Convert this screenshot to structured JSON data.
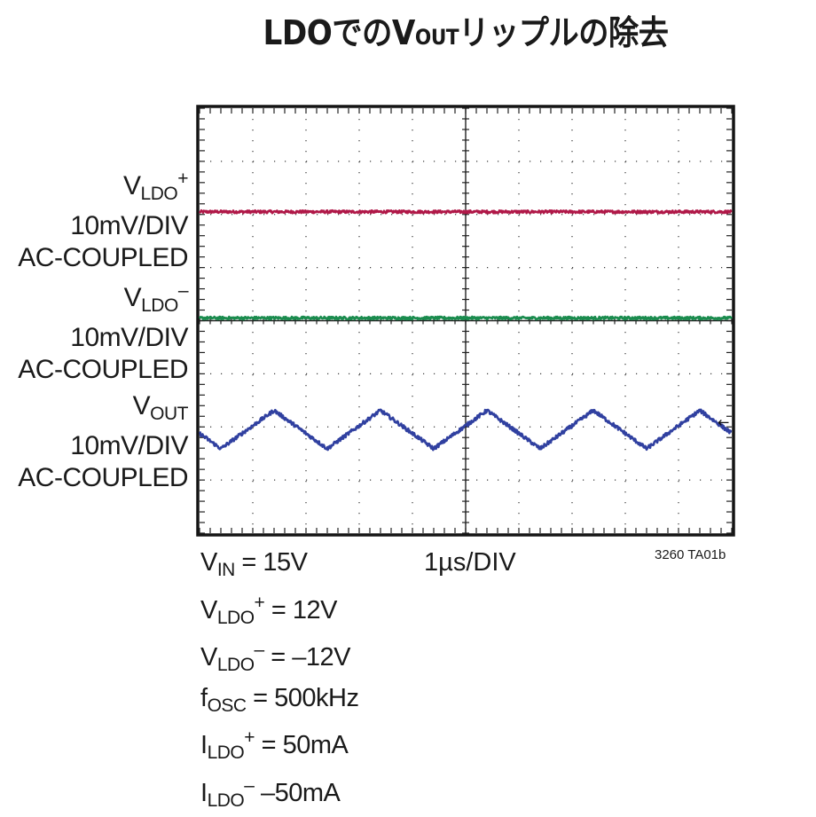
{
  "title": {
    "prefix": "LDOでの",
    "v": "V",
    "v_sub": "OUT",
    "suffix": "リップルの除去"
  },
  "channels": [
    {
      "sym": "V",
      "sub": "LDO",
      "sup": "+",
      "scale": "10mV/DIV",
      "coupling": "AC-COUPLED",
      "color": "#b01848"
    },
    {
      "sym": "V",
      "sub": "LDO",
      "sup": "–",
      "scale": "10mV/DIV",
      "coupling": "AC-COUPLED",
      "color": "#1a8c4e"
    },
    {
      "sym": "V",
      "sub": "OUT",
      "sup": "",
      "scale": "10mV/DIV",
      "coupling": "AC-COUPLED",
      "color": "#3040a0"
    }
  ],
  "conditions": [
    {
      "sym": "V",
      "sub": "IN",
      "sup": "",
      "rest": " = 15V"
    },
    {
      "sym": "V",
      "sub": "LDO",
      "sup": "+",
      "rest": " = 12V"
    },
    {
      "sym": "V",
      "sub": "LDO",
      "sup": "–",
      "rest": " = –12V"
    },
    {
      "sym": "f",
      "sub": "OSC",
      "sup": "",
      "rest": " = 500kHz"
    },
    {
      "sym": "I",
      "sub": "LDO",
      "sup": "+",
      "rest": " = 50mA"
    },
    {
      "sym": "I",
      "sub": "LDO",
      "sup": "–",
      "rest": " –50mA"
    }
  ],
  "time_div": "1µs/DIV",
  "figure_code": "3260 TA01b",
  "chart_data": {
    "type": "line",
    "grid": true,
    "x_divisions": 10,
    "y_divisions": 8,
    "x_unit_per_div": "1µs",
    "y_unit_per_div": "10mV",
    "xlim": [
      0,
      10
    ],
    "ylim": [
      0,
      8
    ],
    "series": [
      {
        "name": "VLDO+",
        "shape": "flat",
        "level": 6.05,
        "noise": 0.025
      },
      {
        "name": "VLDO–",
        "shape": "flat",
        "level": 4.05,
        "noise": 0.025
      },
      {
        "name": "VOUT",
        "shape": "triangle",
        "level": 1.95,
        "amplitude": 0.36,
        "period": 2.0,
        "peak_x": 1.4,
        "noise": 0.035
      }
    ],
    "marker": {
      "symbol": "←",
      "level": 2.1
    }
  }
}
